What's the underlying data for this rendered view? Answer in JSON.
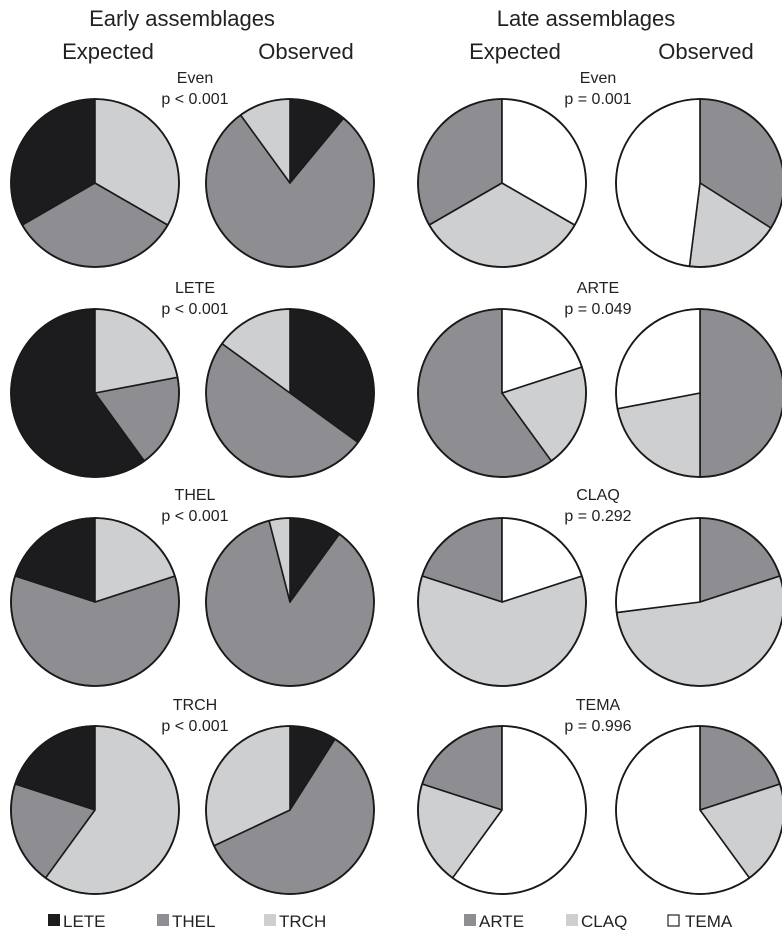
{
  "panels": [
    {
      "title": "Early assemblages",
      "col_labels": [
        "Expected",
        "Observed"
      ]
    },
    {
      "title": "Late assemblages",
      "col_labels": [
        "Expected",
        "Observed"
      ]
    }
  ],
  "colors": {
    "LETE": "#1c1c1e",
    "THEL": "#8e8d92",
    "TRCH": "#cdcfd1",
    "ARTE": "#8e8d92",
    "CLAQ": "#cdcfd1",
    "TEMA": "#ffffff"
  },
  "chart_data": [
    {
      "type": "pie",
      "title": "Early assemblages",
      "categories": [
        "LETE",
        "THEL",
        "TRCH"
      ],
      "rows": [
        {
          "label": "Even",
          "p": "p < 0.001",
          "expected": [
            33.3,
            33.3,
            33.3
          ],
          "observed": [
            11,
            79,
            10
          ]
        },
        {
          "label": "LETE",
          "p": "p < 0.001",
          "expected": [
            60,
            18,
            22
          ],
          "observed": [
            35,
            50,
            15
          ]
        },
        {
          "label": "THEL",
          "p": "p < 0.001",
          "expected": [
            20,
            60,
            20
          ],
          "observed": [
            10,
            86,
            4
          ]
        },
        {
          "label": "TRCH",
          "p": "p < 0.001",
          "expected": [
            20,
            20,
            60
          ],
          "observed": [
            9,
            59,
            32
          ]
        }
      ],
      "legend": [
        "LETE",
        "THEL",
        "TRCH"
      ]
    },
    {
      "type": "pie",
      "title": "Late assemblages",
      "categories": [
        "ARTE",
        "CLAQ",
        "TEMA"
      ],
      "rows": [
        {
          "label": "Even",
          "p": "p = 0.001",
          "expected": [
            33.3,
            33.3,
            33.3
          ],
          "observed": [
            34,
            18,
            48
          ]
        },
        {
          "label": "ARTE",
          "p": "p = 0.049",
          "expected": [
            60,
            20,
            20
          ],
          "observed": [
            50,
            22,
            28
          ]
        },
        {
          "label": "CLAQ",
          "p": "p = 0.292",
          "expected": [
            20,
            60,
            20
          ],
          "observed": [
            20,
            53,
            27
          ]
        },
        {
          "label": "TEMA",
          "p": "p = 0.996",
          "expected": [
            20,
            20,
            60
          ],
          "observed": [
            20,
            20,
            60
          ]
        }
      ],
      "legend": [
        "ARTE",
        "CLAQ",
        "TEMA"
      ]
    }
  ]
}
